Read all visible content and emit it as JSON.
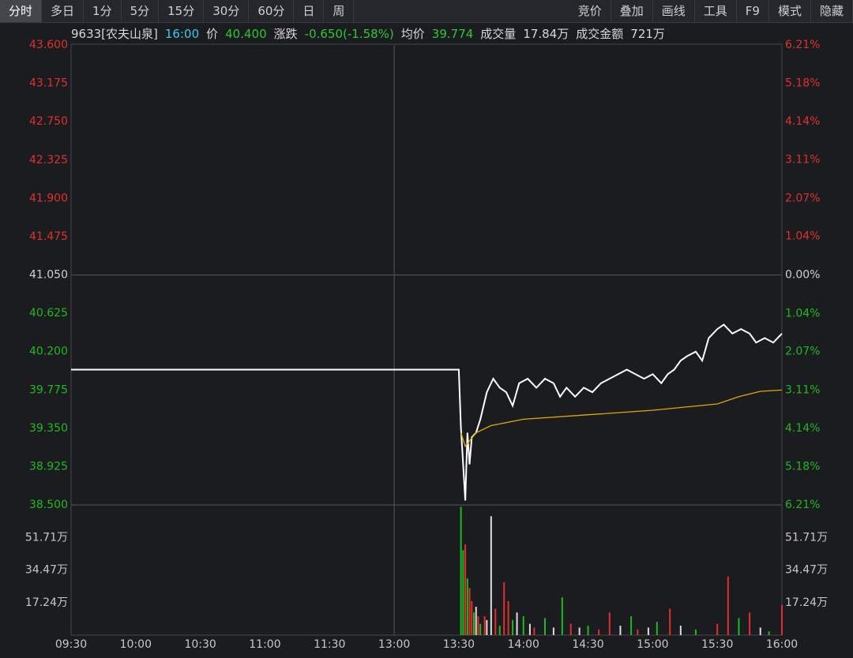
{
  "toolbar": {
    "left": [
      "分时",
      "多日",
      "1分",
      "5分",
      "15分",
      "30分",
      "60分",
      "日",
      "周"
    ],
    "right": [
      "竞价",
      "叠加",
      "画线",
      "工具",
      "F9",
      "模式",
      "隐藏"
    ]
  },
  "header": {
    "items": [
      {
        "text": "9633[农夫山泉]",
        "color": "#d8d8d8"
      },
      {
        "text": "16:00",
        "color": "#3cc8e8"
      },
      {
        "text": "价",
        "color": "#d8d8d8"
      },
      {
        "text": "40.400",
        "color": "#2ec82e"
      },
      {
        "text": "涨跌",
        "color": "#d8d8d8"
      },
      {
        "text": "-0.650(-1.58%)",
        "color": "#2ec82e"
      },
      {
        "text": "均价",
        "color": "#d8d8d8"
      },
      {
        "text": "39.774",
        "color": "#2ec82e"
      },
      {
        "text": "成交量",
        "color": "#d8d8d8"
      },
      {
        "text": "17.84万",
        "color": "#d8d8d8"
      },
      {
        "text": "成交金额",
        "color": "#d8d8d8"
      },
      {
        "text": "721万",
        "color": "#d8d8d8"
      }
    ]
  },
  "chart_data": [
    {
      "type": "line",
      "xlim": [
        0,
        330
      ],
      "xticks": [
        {
          "value": 0,
          "label": "09:30"
        },
        {
          "value": 30,
          "label": "10:00"
        },
        {
          "value": 60,
          "label": "10:30"
        },
        {
          "value": 90,
          "label": "11:00"
        },
        {
          "value": 120,
          "label": "11:30"
        },
        {
          "value": 150,
          "label": "13:00"
        },
        {
          "value": 180,
          "label": "13:30"
        },
        {
          "value": 210,
          "label": "14:00"
        },
        {
          "value": 240,
          "label": "14:30"
        },
        {
          "value": 270,
          "label": "15:00"
        },
        {
          "value": 300,
          "label": "15:30"
        },
        {
          "value": 330,
          "label": "16:00"
        }
      ],
      "ylim": [
        38.5,
        43.6
      ],
      "yticks": [
        {
          "value": 43.6,
          "label": "43.600"
        },
        {
          "value": 43.175,
          "label": "43.175"
        },
        {
          "value": 42.75,
          "label": "42.750"
        },
        {
          "value": 42.325,
          "label": "42.325"
        },
        {
          "value": 41.9,
          "label": "41.900"
        },
        {
          "value": 41.475,
          "label": "41.475"
        },
        {
          "value": 41.05,
          "label": "41.050"
        },
        {
          "value": 40.625,
          "label": "40.625"
        },
        {
          "value": 40.2,
          "label": "40.200"
        },
        {
          "value": 39.775,
          "label": "39.775"
        },
        {
          "value": 39.35,
          "label": "39.350"
        },
        {
          "value": 38.925,
          "label": "38.925"
        },
        {
          "value": 38.5,
          "label": "38.500"
        }
      ],
      "y2lim": [
        -6.21,
        6.21
      ],
      "y2ticks": [
        {
          "value": 6.21,
          "label": "6.21%"
        },
        {
          "value": 5.18,
          "label": "5.18%"
        },
        {
          "value": 4.14,
          "label": "4.14%"
        },
        {
          "value": 3.11,
          "label": "3.11%"
        },
        {
          "value": 2.07,
          "label": "2.07%"
        },
        {
          "value": 1.04,
          "label": "1.04%"
        },
        {
          "value": 0,
          "label": "0.00%"
        },
        {
          "value": -1.04,
          "label": "1.04%"
        },
        {
          "value": -2.07,
          "label": "2.07%"
        },
        {
          "value": -3.11,
          "label": "3.11%"
        },
        {
          "value": -4.14,
          "label": "4.14%"
        },
        {
          "value": -5.18,
          "label": "5.18%"
        },
        {
          "value": -6.21,
          "label": "6.21%"
        }
      ],
      "series": [
        {
          "color": "#ffffff",
          "x": [
            0,
            180,
            181,
            182,
            183,
            184,
            185,
            186,
            188,
            190,
            193,
            196,
            199,
            202,
            205,
            208,
            212,
            216,
            220,
            224,
            227,
            230,
            234,
            238,
            242,
            246,
            250,
            254,
            258,
            262,
            266,
            270,
            274,
            277,
            280,
            283,
            286,
            290,
            293,
            296,
            300,
            303,
            307,
            311,
            315,
            318,
            322,
            326,
            330
          ],
          "values": [
            40.0,
            40.0,
            39.35,
            38.95,
            38.55,
            39.3,
            38.95,
            39.25,
            39.3,
            39.45,
            39.75,
            39.9,
            39.8,
            39.75,
            39.6,
            39.85,
            39.9,
            39.8,
            39.9,
            39.85,
            39.7,
            39.8,
            39.7,
            39.8,
            39.75,
            39.85,
            39.9,
            39.95,
            40.0,
            39.95,
            39.9,
            39.95,
            39.85,
            39.95,
            40.0,
            40.1,
            40.15,
            40.2,
            40.1,
            40.35,
            40.45,
            40.5,
            40.4,
            40.45,
            40.4,
            40.3,
            40.35,
            40.3,
            40.4
          ]
        },
        {
          "color": "#e0a800",
          "x": [
            181,
            183,
            188,
            195,
            210,
            240,
            270,
            300,
            310,
            320,
            330
          ],
          "values": [
            39.3,
            39.15,
            39.3,
            39.38,
            39.45,
            39.5,
            39.55,
            39.62,
            39.7,
            39.76,
            39.774
          ]
        }
      ]
    },
    {
      "type": "bar",
      "xlim": [
        0,
        330
      ],
      "ylim": [
        0,
        68.96
      ],
      "yticks": [
        {
          "value": 17.24,
          "label": "17.24万"
        },
        {
          "value": 34.47,
          "label": "34.47万"
        },
        {
          "value": 51.71,
          "label": "51.71万"
        }
      ],
      "x": [
        181,
        182,
        183,
        184,
        185,
        186,
        187,
        188,
        189,
        190,
        192,
        193,
        195,
        197,
        199,
        201,
        203,
        205,
        207,
        210,
        213,
        215,
        220,
        224,
        228,
        232,
        236,
        240,
        245,
        250,
        255,
        260,
        263,
        268,
        272,
        278,
        283,
        290,
        300,
        305,
        310,
        315,
        320,
        324,
        330
      ],
      "values": [
        68,
        45,
        48,
        30,
        25,
        18,
        12,
        15,
        10,
        6,
        10,
        8,
        63,
        14,
        5,
        28,
        18,
        8,
        12,
        10,
        6,
        4,
        9,
        4,
        20,
        6,
        4,
        5,
        3,
        12,
        5,
        10,
        3,
        4,
        7,
        14,
        5,
        3,
        6,
        31,
        9,
        12,
        4,
        2,
        16
      ],
      "colors": [
        "#1fb91f",
        "#1fb91f",
        "#e0302d",
        "#1fb91f",
        "#e0302d",
        "#e0302d",
        "#1fb91f",
        "#dddddd",
        "#e0302d",
        "#1fb91f",
        "#e0302d",
        "#dddddd",
        "#dddddd",
        "#e0302d",
        "#1fb91f",
        "#e0302d",
        "#e0302d",
        "#1fb91f",
        "#dddddd",
        "#1fb91f",
        "#dddddd",
        "#e0302d",
        "#1fb91f",
        "#dddddd",
        "#1fb91f",
        "#e0302d",
        "#dddddd",
        "#1fb91f",
        "#e0302d",
        "#e0302d",
        "#dddddd",
        "#1fb91f",
        "#e0302d",
        "#dddddd",
        "#1fb91f",
        "#e0302d",
        "#dddddd",
        "#1fb91f",
        "#e0302d",
        "#e0302d",
        "#1fb91f",
        "#e0302d",
        "#dddddd",
        "#1fb91f",
        "#e0302d"
      ]
    }
  ]
}
